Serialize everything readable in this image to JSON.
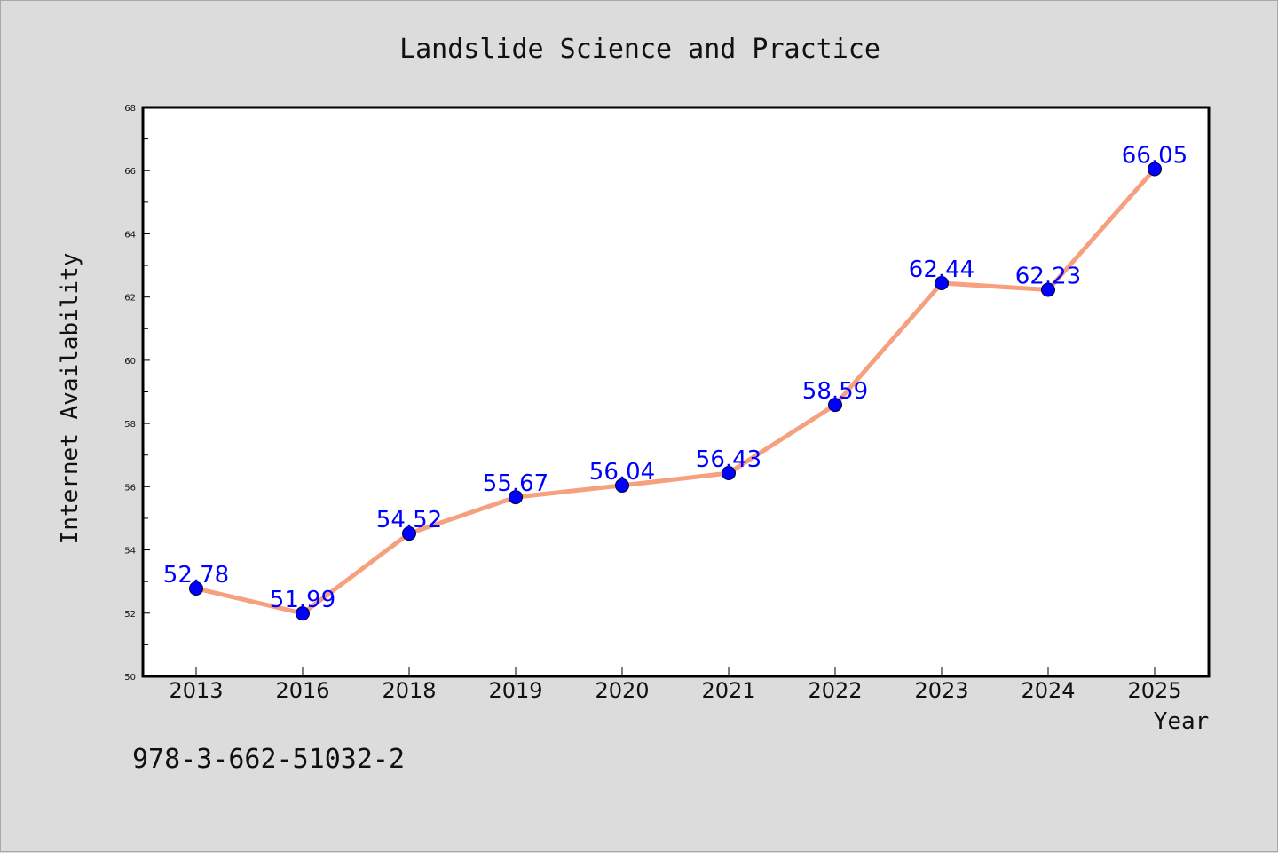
{
  "figure": {
    "isbn": "978-3-662-51032-2"
  },
  "chart_data": {
    "type": "line",
    "title": "Landslide Science and Practice",
    "xlabel": "Year",
    "ylabel": "Internet Availability",
    "categories": [
      "2013",
      "2016",
      "2018",
      "2019",
      "2020",
      "2021",
      "2022",
      "2023",
      "2024",
      "2025"
    ],
    "series": [
      {
        "values": [
          52.78,
          51.99,
          54.52,
          55.67,
          56.04,
          56.43,
          58.59,
          62.44,
          62.23,
          66.05
        ],
        "line_color": "#f5a07f",
        "marker_color": "#0000ff"
      }
    ],
    "data_labels": [
      "52.78",
      "51.99",
      "54.52",
      "55.67",
      "56.04",
      "56.43",
      "58.59",
      "62.44",
      "62.23",
      "66.05"
    ],
    "ylim": [
      50,
      68
    ],
    "yticks": [
      50,
      52,
      54,
      56,
      58,
      60,
      62,
      64,
      66,
      68
    ],
    "grid": false,
    "legend": "none",
    "label_color": "#0000ff"
  }
}
